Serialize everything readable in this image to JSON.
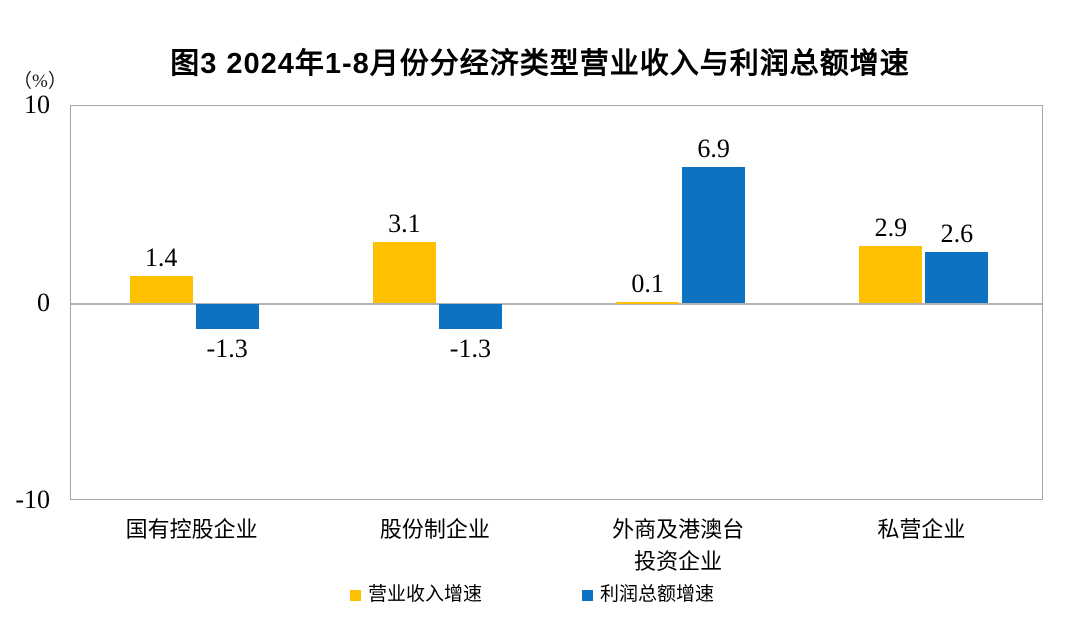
{
  "title": "图3 2024年1-8月份分经济类型营业收入与利润总额增速",
  "y_axis_unit": "（%）",
  "chart_data": {
    "type": "bar",
    "title": "图3 2024年1-8月份分经济类型营业收入与利润总额增速",
    "categories": [
      "国有控股企业",
      "股份制企业",
      "外商及港澳台\n投资企业",
      "私营企业"
    ],
    "series": [
      {
        "name": "营业收入增速",
        "color": "#FFC000",
        "values": [
          1.4,
          3.1,
          0.1,
          2.9
        ]
      },
      {
        "name": "利润总额增速",
        "color": "#0D72C1",
        "values": [
          -1.3,
          -1.3,
          6.9,
          2.6
        ]
      }
    ],
    "ylabel": "（%）",
    "ylim": [
      -10,
      10
    ],
    "yticks": [
      10,
      0,
      -10
    ],
    "grid": false,
    "zero_line": true,
    "legend_position": "bottom",
    "data_labels": true,
    "axis_color": "#a6a6a6",
    "zero_line_color": "#b3b3b3",
    "label_color": "#000000"
  }
}
